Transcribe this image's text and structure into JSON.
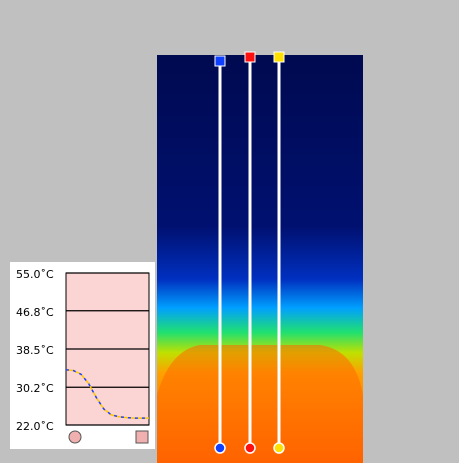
{
  "chart_data": {
    "type": "line",
    "ylim": [
      22,
      55
    ],
    "yticks": [
      {
        "value": 55,
        "label": "55.0˚C"
      },
      {
        "value": 46.8,
        "label": "46.8˚C"
      },
      {
        "value": 38.5,
        "label": "38.5˚C"
      },
      {
        "value": 30.2,
        "label": "30.2˚C"
      },
      {
        "value": 22,
        "label": "22.0˚C"
      }
    ],
    "grid": true,
    "series": [
      {
        "color": "#ffc800",
        "values": [
          34,
          33.8,
          33,
          31,
          28,
          25.5,
          24.2,
          23.8,
          23.6,
          23.5,
          23.5,
          23.5
        ]
      },
      {
        "color": "#2040ff",
        "values": [
          34,
          33.8,
          33,
          31,
          28,
          25.5,
          24.2,
          23.8,
          23.6,
          23.5,
          23.5,
          23.5
        ]
      }
    ]
  }
}
